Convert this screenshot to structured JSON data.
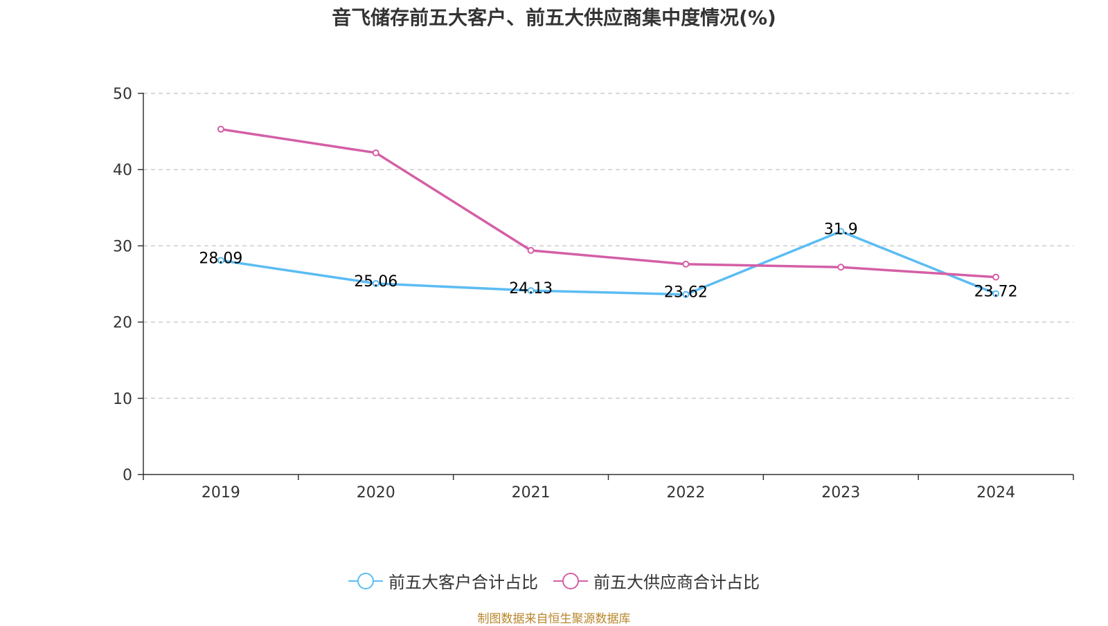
{
  "title": "音飞储存前五大客户、前五大供应商集中度情况(%)",
  "source": "制图数据来自恒生聚源数据库",
  "chart_data": {
    "type": "line",
    "categories": [
      "2019",
      "2020",
      "2021",
      "2022",
      "2023",
      "2024"
    ],
    "ylim": [
      0,
      50
    ],
    "yticks": [
      0,
      10,
      20,
      30,
      40,
      50
    ],
    "grid": true,
    "legend_position": "bottom",
    "series": [
      {
        "name": "前五大客户合计占比",
        "color": "#5bbcf3",
        "values": [
          28.09,
          25.06,
          24.13,
          23.62,
          31.9,
          23.72
        ],
        "labels": [
          "28.09",
          "25.06",
          "24.13",
          "23.62",
          "31.9",
          "23.72"
        ]
      },
      {
        "name": "前五大供应商合计占比",
        "color": "#d45fa6",
        "values": [
          45.3,
          42.2,
          29.4,
          27.6,
          27.2,
          25.9
        ]
      }
    ]
  }
}
